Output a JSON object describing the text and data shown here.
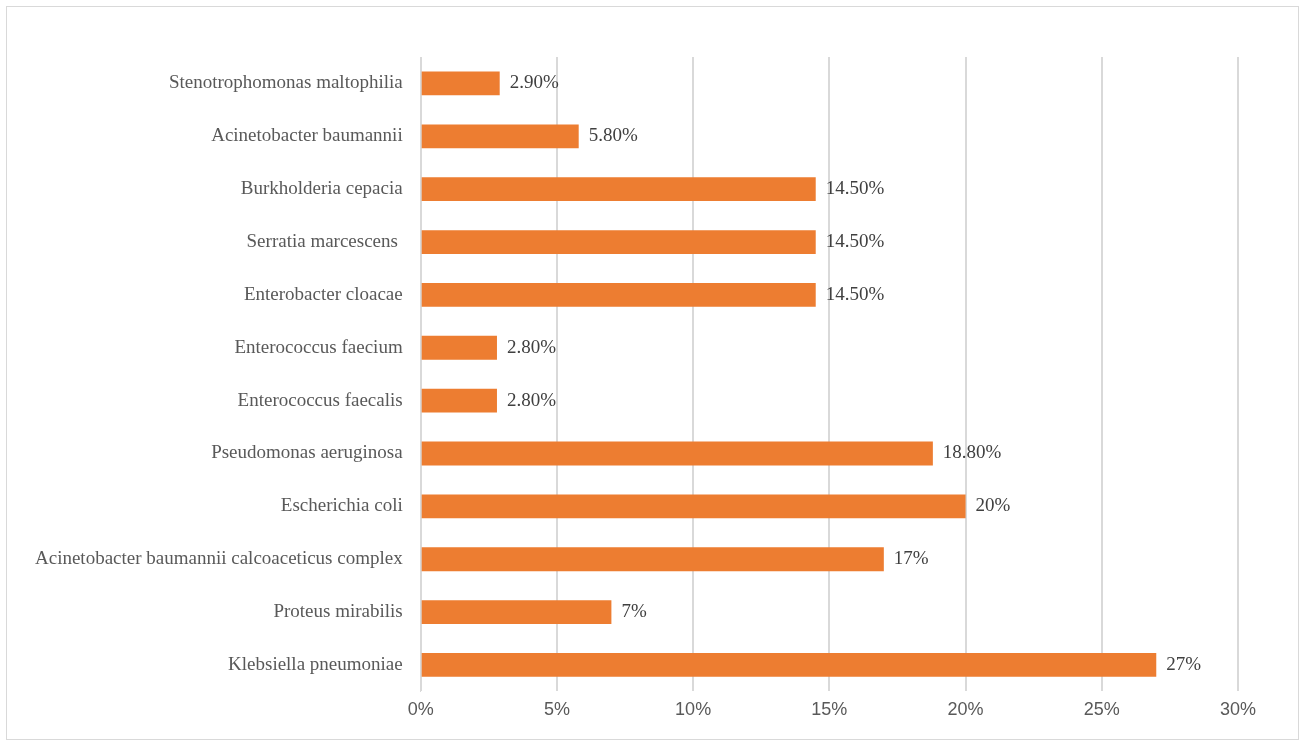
{
  "chart_data": {
    "type": "bar",
    "orientation": "horizontal",
    "categories": [
      "Stenotrophomonas maltophilia",
      "Acinetobacter baumannii",
      "Burkholderia cepacia",
      "Serratia marcescens ",
      "Enterobacter cloacae",
      "Enterococcus faecium",
      "Enterococcus faecalis",
      "Pseudomonas aeruginosa",
      "Escherichia coli",
      "Acinetobacter baumannii calcoaceticus complex",
      "Proteus mirabilis",
      "Klebsiella pneumoniae"
    ],
    "values": [
      2.9,
      5.8,
      14.5,
      14.5,
      14.5,
      2.8,
      2.8,
      18.8,
      20,
      17,
      7,
      27
    ],
    "value_labels": [
      "2.90%",
      "5.80%",
      "14.50%",
      "14.50%",
      "14.50%",
      "2.80%",
      "2.80%",
      "18.80%",
      "20%",
      "17%",
      "7%",
      "27%"
    ],
    "color": "#ed7d31",
    "xlim": [
      0,
      30
    ],
    "xticks": [
      {
        "value": 0,
        "label": "0%"
      },
      {
        "value": 5,
        "label": "5%"
      },
      {
        "value": 10,
        "label": "10%"
      },
      {
        "value": 15,
        "label": "15%"
      },
      {
        "value": 20,
        "label": "20%"
      },
      {
        "value": 25,
        "label": "25%"
      },
      {
        "value": 30,
        "label": "30%"
      }
    ],
    "grid": "x",
    "legend": false
  }
}
